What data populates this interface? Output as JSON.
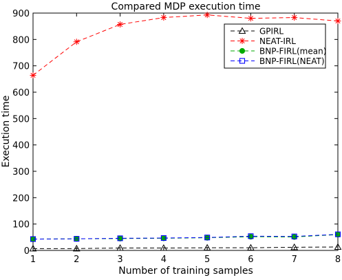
{
  "chart_data": {
    "type": "line",
    "title": "Compared MDP execution time",
    "xlabel": "Number of training samples",
    "ylabel": "Execution time",
    "x": [
      1,
      2,
      3,
      4,
      5,
      6,
      7,
      8
    ],
    "xlim": [
      1,
      8
    ],
    "ylim": [
      0,
      900
    ],
    "xticks": [
      "1",
      "2",
      "3",
      "4",
      "5",
      "6",
      "7",
      "8"
    ],
    "yticks": [
      "0",
      "100",
      "200",
      "300",
      "400",
      "500",
      "600",
      "700",
      "800",
      "900"
    ],
    "grid": false,
    "legend_position": "top-right",
    "series": [
      {
        "name": "GPIRL",
        "color": "#000000",
        "marker": "triangle",
        "values": [
          7,
          7,
          9,
          9,
          10,
          10,
          12,
          13
        ]
      },
      {
        "name": "NEAT-IRL",
        "color": "#ff0000",
        "marker": "star",
        "values": [
          664,
          791,
          857,
          883,
          893,
          880,
          883,
          870
        ]
      },
      {
        "name": "BNP-FIRL(mean)",
        "color": "#00aa00",
        "marker": "dot",
        "values": [
          43,
          44,
          45,
          46,
          48,
          52,
          51,
          60
        ]
      },
      {
        "name": "BNP-FIRL(NEAT)",
        "color": "#0000ff",
        "marker": "square",
        "values": [
          43,
          44,
          46,
          47,
          49,
          54,
          53,
          61
        ]
      }
    ]
  }
}
